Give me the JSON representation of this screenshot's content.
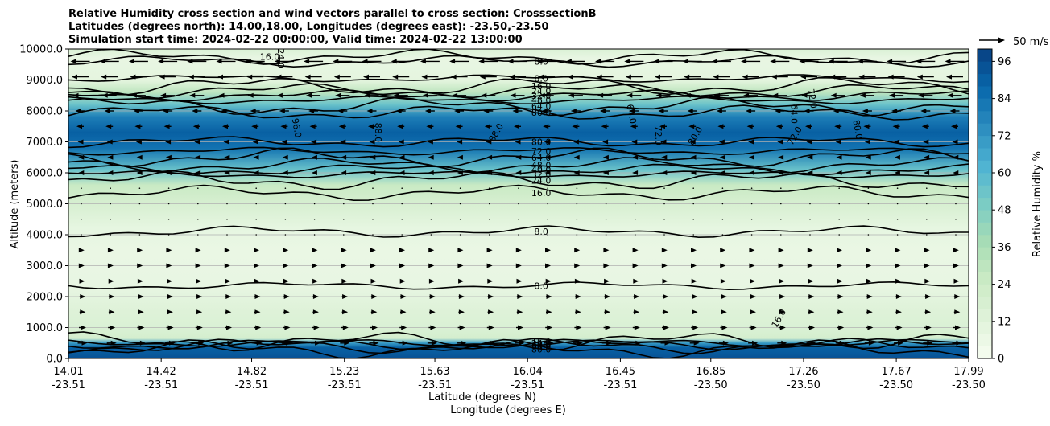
{
  "chart_data": {
    "type": "contourf",
    "title_lines": [
      "Relative Humidity cross section and wind vectors parallel to cross section: CrosssectionB",
      "Latitudes (degrees north): 14.00,18.00, Longitudes (degrees east): -23.50,-23.50",
      "Simulation start time: 2024-02-22 00:00:00, Valid time: 2024-02-22 13:00:00"
    ],
    "ylabel": "Altitude (meters)",
    "xlabel_1": "Latitude (degrees N)",
    "xlabel_2": "Longitude (degrees E)",
    "ylim": [
      0,
      10000
    ],
    "y_ticks": [
      {
        "value": 0,
        "label": "0.0"
      },
      {
        "value": 1000,
        "label": "1000.0"
      },
      {
        "value": 2000,
        "label": "2000.0"
      },
      {
        "value": 3000,
        "label": "3000.0"
      },
      {
        "value": 4000,
        "label": "4000.0"
      },
      {
        "value": 5000,
        "label": "5000.0"
      },
      {
        "value": 6000,
        "label": "6000.0"
      },
      {
        "value": 7000,
        "label": "7000.0"
      },
      {
        "value": 8000,
        "label": "8000.0"
      },
      {
        "value": 9000,
        "label": "9000.0"
      },
      {
        "value": 10000,
        "label": "10000.0"
      }
    ],
    "x_range": [
      14.01,
      17.99
    ],
    "x_ticks": [
      {
        "lat": 14.01,
        "lat_label": "14.01",
        "lon_label": "-23.51"
      },
      {
        "lat": 14.42,
        "lat_label": "14.42",
        "lon_label": "-23.51"
      },
      {
        "lat": 14.82,
        "lat_label": "14.82",
        "lon_label": "-23.51"
      },
      {
        "lat": 15.23,
        "lat_label": "15.23",
        "lon_label": "-23.51"
      },
      {
        "lat": 15.63,
        "lat_label": "15.63",
        "lon_label": "-23.51"
      },
      {
        "lat": 16.04,
        "lat_label": "16.04",
        "lon_label": "-23.51"
      },
      {
        "lat": 16.45,
        "lat_label": "16.45",
        "lon_label": "-23.51"
      },
      {
        "lat": 16.85,
        "lat_label": "16.85",
        "lon_label": "-23.50"
      },
      {
        "lat": 17.26,
        "lat_label": "17.26",
        "lon_label": "-23.50"
      },
      {
        "lat": 17.67,
        "lat_label": "17.67",
        "lon_label": "-23.50"
      },
      {
        "lat": 17.99,
        "lat_label": "17.99",
        "lon_label": "-23.50"
      }
    ],
    "humidity_profile": [
      {
        "alt": 0,
        "rh": 95
      },
      {
        "alt": 150,
        "rh": 92
      },
      {
        "alt": 350,
        "rh": 90
      },
      {
        "alt": 500,
        "rh": 70
      },
      {
        "alt": 650,
        "rh": 20
      },
      {
        "alt": 1000,
        "rh": 16
      },
      {
        "alt": 1500,
        "rh": 14
      },
      {
        "alt": 2400,
        "rh": 8
      },
      {
        "alt": 3500,
        "rh": 7
      },
      {
        "alt": 4200,
        "rh": 9
      },
      {
        "alt": 5000,
        "rh": 18
      },
      {
        "alt": 5600,
        "rh": 26
      },
      {
        "alt": 6100,
        "rh": 55
      },
      {
        "alt": 6800,
        "rh": 84
      },
      {
        "alt": 7300,
        "rh": 90
      },
      {
        "alt": 7800,
        "rh": 80
      },
      {
        "alt": 8200,
        "rh": 55
      },
      {
        "alt": 8600,
        "rh": 30
      },
      {
        "alt": 9000,
        "rh": 10
      },
      {
        "alt": 9700,
        "rh": 8
      },
      {
        "alt": 10000,
        "rh": 16
      }
    ],
    "contour_lines": [
      {
        "level": 8,
        "alt": 2350,
        "label": "8.0",
        "label_lat": 16.1
      },
      {
        "level": 8,
        "alt": 4100,
        "label": "8.0",
        "label_lat": 16.1
      },
      {
        "level": 16,
        "alt": 5350,
        "label": "16.0",
        "label_lat": 16.1
      },
      {
        "level": 24,
        "alt": 5750,
        "label": "24.0",
        "label_lat": 16.1
      },
      {
        "level": 32,
        "alt": 5950,
        "label": "32.0",
        "label_lat": 16.1
      },
      {
        "level": 40,
        "alt": 6100,
        "label": "40.0",
        "label_lat": 16.1
      },
      {
        "level": 48,
        "alt": 6250,
        "label": "48.0",
        "label_lat": 16.1
      },
      {
        "level": 64,
        "alt": 6500,
        "label": "64.0",
        "label_lat": 16.1
      },
      {
        "level": 72,
        "alt": 6700,
        "label": "72.0",
        "label_lat": 16.1
      },
      {
        "level": 80,
        "alt": 7000,
        "label": "80.0",
        "label_lat": 16.1
      },
      {
        "level": 80,
        "alt": 7950,
        "label": "80.0",
        "label_lat": 16.1
      },
      {
        "level": 64,
        "alt": 8150,
        "label": "64.0",
        "label_lat": 16.1
      },
      {
        "level": 48,
        "alt": 8350,
        "label": "48.0",
        "label_lat": 16.1
      },
      {
        "level": 32,
        "alt": 8500,
        "label": "32.0",
        "label_lat": 16.1
      },
      {
        "level": 24,
        "alt": 8650,
        "label": "24.0",
        "label_lat": 16.1
      },
      {
        "level": 16,
        "alt": 8800,
        "label": "16.0",
        "label_lat": 16.1
      },
      {
        "level": 8,
        "alt": 9050,
        "label": "8.0",
        "label_lat": 16.1
      },
      {
        "level": 8,
        "alt": 9600,
        "label": "8.0",
        "label_lat": 16.1
      },
      {
        "level": 16,
        "alt": 9750,
        "label": "16.0",
        "label_lat": 14.9
      },
      {
        "level": 16,
        "alt": 550,
        "label": "16.0",
        "label_lat": 16.1
      },
      {
        "level": 24,
        "alt": 500,
        "label": "24.0",
        "label_lat": 16.1
      },
      {
        "level": 40,
        "alt": 450,
        "label": "40.0",
        "label_lat": 16.1
      },
      {
        "level": 64,
        "alt": 400,
        "label": "64.0",
        "label_lat": 16.1
      },
      {
        "level": 80,
        "alt": 300,
        "label": "80.0",
        "label_lat": 16.1
      }
    ],
    "inner_labels": [
      {
        "text": "96.0",
        "lat": 15.02,
        "alt": 7450
      },
      {
        "text": "88.0",
        "lat": 15.38,
        "alt": 7300
      },
      {
        "text": "88.0",
        "lat": 15.9,
        "alt": 7300
      },
      {
        "text": "64.0",
        "lat": 16.5,
        "alt": 7900
      },
      {
        "text": "72.0",
        "lat": 16.62,
        "alt": 7200
      },
      {
        "text": "80.0",
        "lat": 16.78,
        "alt": 7200
      },
      {
        "text": "72.0",
        "lat": 17.3,
        "alt": 8400
      },
      {
        "text": "64.0",
        "lat": 17.22,
        "alt": 7900
      },
      {
        "text": "72.0",
        "lat": 17.22,
        "alt": 7200
      },
      {
        "text": "80.0",
        "lat": 17.5,
        "alt": 7400
      },
      {
        "text": "24.0",
        "lat": 14.95,
        "alt": 9700
      },
      {
        "text": "16.0",
        "lat": 17.15,
        "alt": 1300
      }
    ],
    "wind_reference": {
      "label": "50 m/s",
      "speed": 50
    },
    "wind_vectors": [
      {
        "alt": 9600,
        "u": -14
      },
      {
        "alt": 9100,
        "u": -12
      },
      {
        "alt": 8500,
        "u": -10
      },
      {
        "alt": 8000,
        "u": -6
      },
      {
        "alt": 7500,
        "u": -4
      },
      {
        "alt": 7000,
        "u": -2
      },
      {
        "alt": 6500,
        "u": -1
      },
      {
        "alt": 6000,
        "u": -1
      },
      {
        "alt": 5500,
        "u": 0
      },
      {
        "alt": 5000,
        "u": 0
      },
      {
        "alt": 4500,
        "u": 0
      },
      {
        "alt": 4000,
        "u": 0
      },
      {
        "alt": 3500,
        "u": 1
      },
      {
        "alt": 3000,
        "u": 1
      },
      {
        "alt": 2500,
        "u": 2
      },
      {
        "alt": 2000,
        "u": 3
      },
      {
        "alt": 1500,
        "u": 3
      },
      {
        "alt": 1000,
        "u": 4
      },
      {
        "alt": 500,
        "u": 6
      }
    ],
    "colorbar": {
      "label": "Relative Humidity %",
      "min": 0,
      "max": 100,
      "ticks": [
        {
          "value": 0,
          "label": "0"
        },
        {
          "value": 12,
          "label": "12"
        },
        {
          "value": 24,
          "label": "24"
        },
        {
          "value": 36,
          "label": "36"
        },
        {
          "value": 48,
          "label": "48"
        },
        {
          "value": 60,
          "label": "60"
        },
        {
          "value": 72,
          "label": "72"
        },
        {
          "value": 84,
          "label": "84"
        },
        {
          "value": 96,
          "label": "96"
        }
      ]
    },
    "colors": {
      "stops": [
        "#f7fcf0",
        "#e0f3db",
        "#ccebc5",
        "#a8ddb5",
        "#7bccc4",
        "#4eb3d3",
        "#2b8cbe",
        "#0868ac",
        "#084081"
      ],
      "contour": "#000000",
      "grid": "#b0b0b0"
    }
  }
}
